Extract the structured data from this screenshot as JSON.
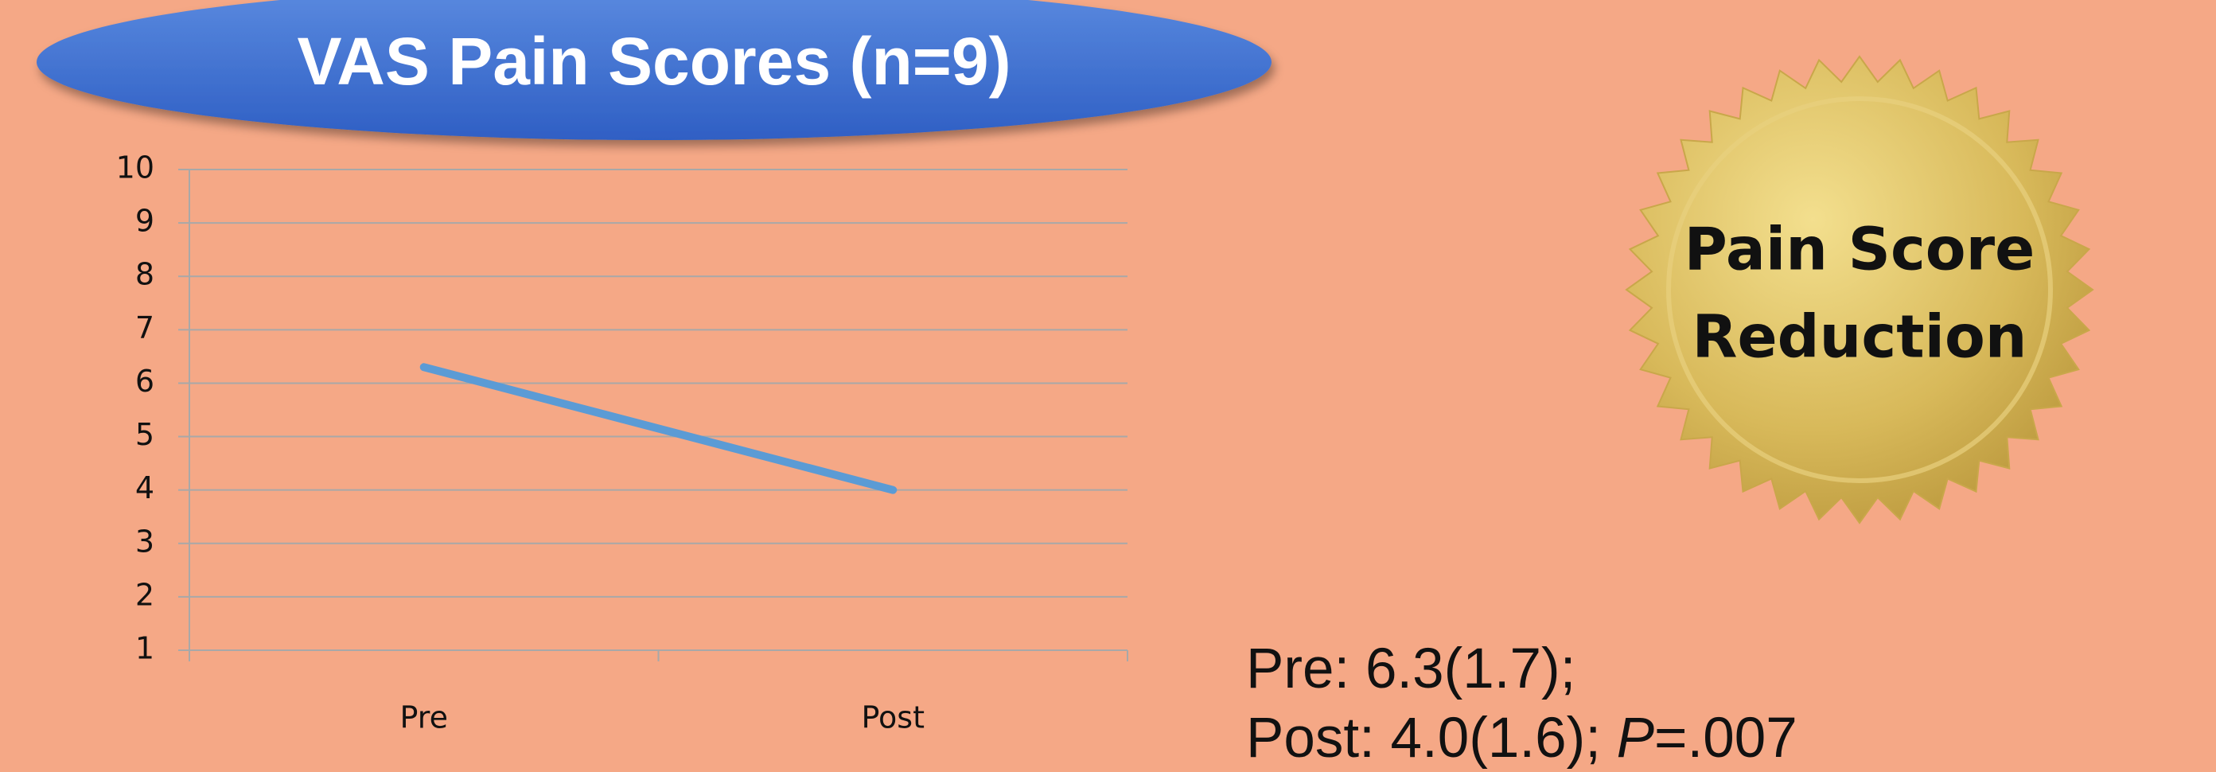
{
  "chart_data": {
    "type": "line",
    "title": "VAS Pain Scores (n=9)",
    "categories": [
      "Pre",
      "Post"
    ],
    "values": [
      6.3,
      4.0
    ],
    "color": "#5b9bd5",
    "ylim": [
      1,
      10
    ],
    "yticks": [
      1,
      2,
      3,
      4,
      5,
      6,
      7,
      8,
      9,
      10
    ],
    "grid": true
  },
  "badge": {
    "lines": [
      "Pain Score",
      "Reduction"
    ]
  },
  "stats": {
    "line1": "Pre: 6.3(1.7);",
    "line2": [
      "Post: 4.0(1.6); ",
      "P",
      "=.007"
    ]
  }
}
